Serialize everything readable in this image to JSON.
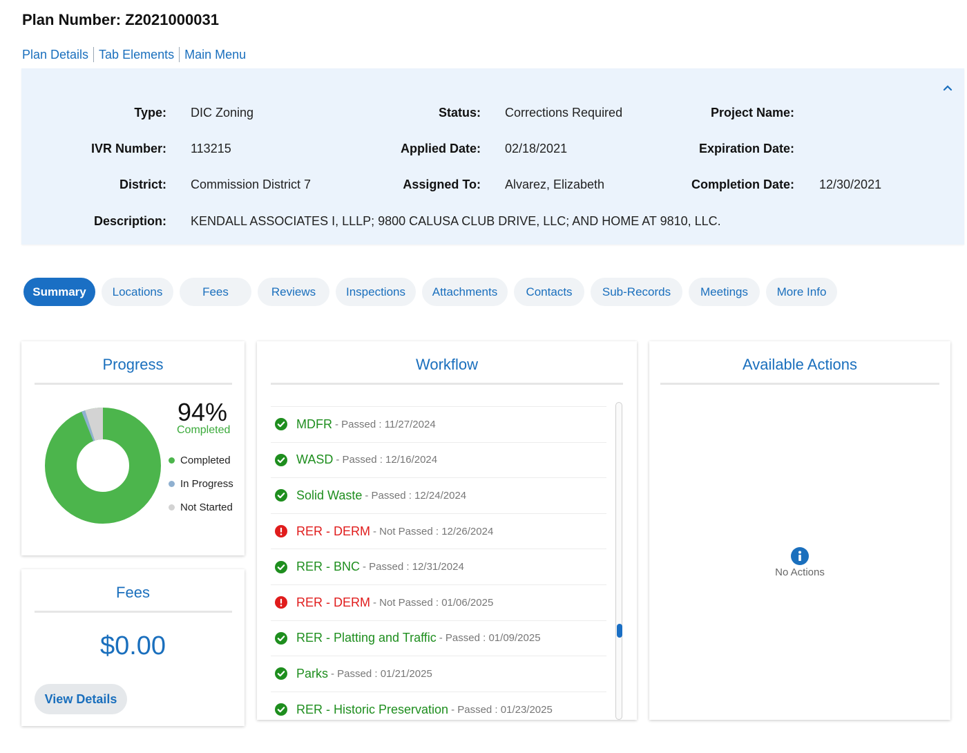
{
  "plan": {
    "title": "Plan Number: Z2021000031"
  },
  "nav": {
    "plan_details": "Plan Details",
    "tab_elements": "Tab Elements",
    "main_menu": "Main Menu"
  },
  "details": {
    "type_label": "Type:",
    "type_value": "DIC Zoning",
    "status_label": "Status:",
    "status_value": "Corrections Required",
    "project_label": "Project Name:",
    "project_value": "",
    "ivr_label": "IVR Number:",
    "ivr_value": "113215",
    "applied_label": "Applied Date:",
    "applied_value": "02/18/2021",
    "expiration_label": "Expiration Date:",
    "expiration_value": "",
    "district_label": "District:",
    "district_value": "Commission District 7",
    "assigned_label": "Assigned To:",
    "assigned_value": "Alvarez, Elizabeth",
    "completion_label": "Completion Date:",
    "completion_value": "12/30/2021",
    "description_label": "Description:",
    "description_value": "KENDALL ASSOCIATES I, LLLP; 9800 CALUSA CLUB DRIVE, LLC; AND HOME AT 9810, LLC.",
    "collapse_icon": "chevron-up-icon"
  },
  "tabs": [
    "Summary",
    "Locations",
    "Fees",
    "Reviews",
    "Inspections",
    "Attachments",
    "Contacts",
    "Sub-Records",
    "Meetings",
    "More Info"
  ],
  "active_tab": "Summary",
  "progress": {
    "title": "Progress",
    "percent_text": "94%",
    "completed_text": "Completed",
    "legend": [
      "Completed",
      "In Progress",
      "Not Started"
    ],
    "colors": {
      "completed": "#4cb54c",
      "in_progress": "#8fb0d0",
      "not_started": "#d3d3d3"
    },
    "completed_fraction": 0.94,
    "in_progress_fraction": 0.01,
    "not_started_fraction": 0.05
  },
  "fees": {
    "title": "Fees",
    "amount": "$0.00",
    "button": "View Details"
  },
  "workflow": {
    "title": "Workflow",
    "items": [
      {
        "name": "MDFR",
        "meta": "- Passed : 11/27/2024",
        "status": "pass"
      },
      {
        "name": "WASD",
        "meta": "- Passed : 12/16/2024",
        "status": "pass"
      },
      {
        "name": "Solid Waste",
        "meta": "- Passed : 12/24/2024",
        "status": "pass"
      },
      {
        "name": "RER - DERM",
        "meta": "- Not Passed : 12/26/2024",
        "status": "fail"
      },
      {
        "name": "RER - BNC",
        "meta": "- Passed : 12/31/2024",
        "status": "pass"
      },
      {
        "name": "RER - DERM",
        "meta": "- Not Passed : 01/06/2025",
        "status": "fail"
      },
      {
        "name": "RER - Platting and Traffic",
        "meta": "- Passed : 01/09/2025",
        "status": "pass"
      },
      {
        "name": "Parks",
        "meta": "- Passed : 01/21/2025",
        "status": "pass"
      },
      {
        "name": "RER - Historic Preservation",
        "meta": "- Passed : 01/23/2025",
        "status": "pass"
      }
    ],
    "pass_color": "#1e8e1e",
    "fail_color": "#e01c1c"
  },
  "actions": {
    "title": "Available Actions",
    "empty_text": "No Actions",
    "icon": "info-icon"
  }
}
